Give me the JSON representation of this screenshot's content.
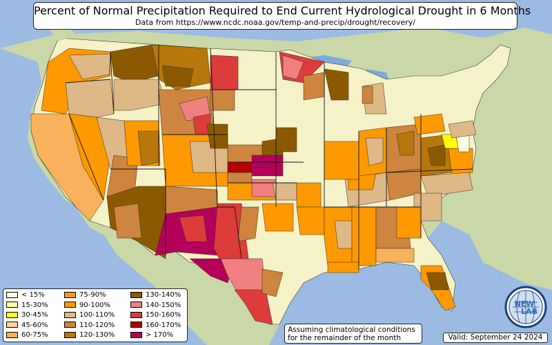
{
  "header": {
    "title": "Percent of Normal Precipitation Required to End Current Hydrological Drought in 6 Months",
    "subtitle": "Data from https://www.ncdc.noaa.gov/temp-and-precip/drought/recovery/"
  },
  "legend": [
    {
      "label": "< 15%",
      "color": "#fffde0"
    },
    {
      "label": "15-30%",
      "color": "#ffffa8"
    },
    {
      "label": "30-45%",
      "color": "#ffff00"
    },
    {
      "label": "45-60%",
      "color": "#fcd29a"
    },
    {
      "label": "60-75%",
      "color": "#f7b25b"
    },
    {
      "label": "75-90%",
      "color": "#f59c26"
    },
    {
      "label": "90-100%",
      "color": "#ff9900"
    },
    {
      "label": "100-110%",
      "color": "#deb887"
    },
    {
      "label": "110-120%",
      "color": "#cd853f"
    },
    {
      "label": "120-130%",
      "color": "#b8770b"
    },
    {
      "label": "130-140%",
      "color": "#8b5a00"
    },
    {
      "label": "140-150%",
      "color": "#f08080"
    },
    {
      "label": "150-160%",
      "color": "#dc3c3c"
    },
    {
      "label": "160-170%",
      "color": "#b40000"
    },
    {
      "label": "> 170%",
      "color": "#b4005a"
    }
  ],
  "note": {
    "line1": "Assuming climatological conditions",
    "line2": "for the remainder of the month"
  },
  "valid": "Valid: September 24 2024",
  "logo": {
    "text_top": "NEW",
    "text_bottom": "LAB"
  },
  "colors": {
    "ocean": "#9bbbe3",
    "land": "#c9d8a6",
    "lake": "#7fa9d8",
    "no_drought": "#f5f2c8"
  }
}
